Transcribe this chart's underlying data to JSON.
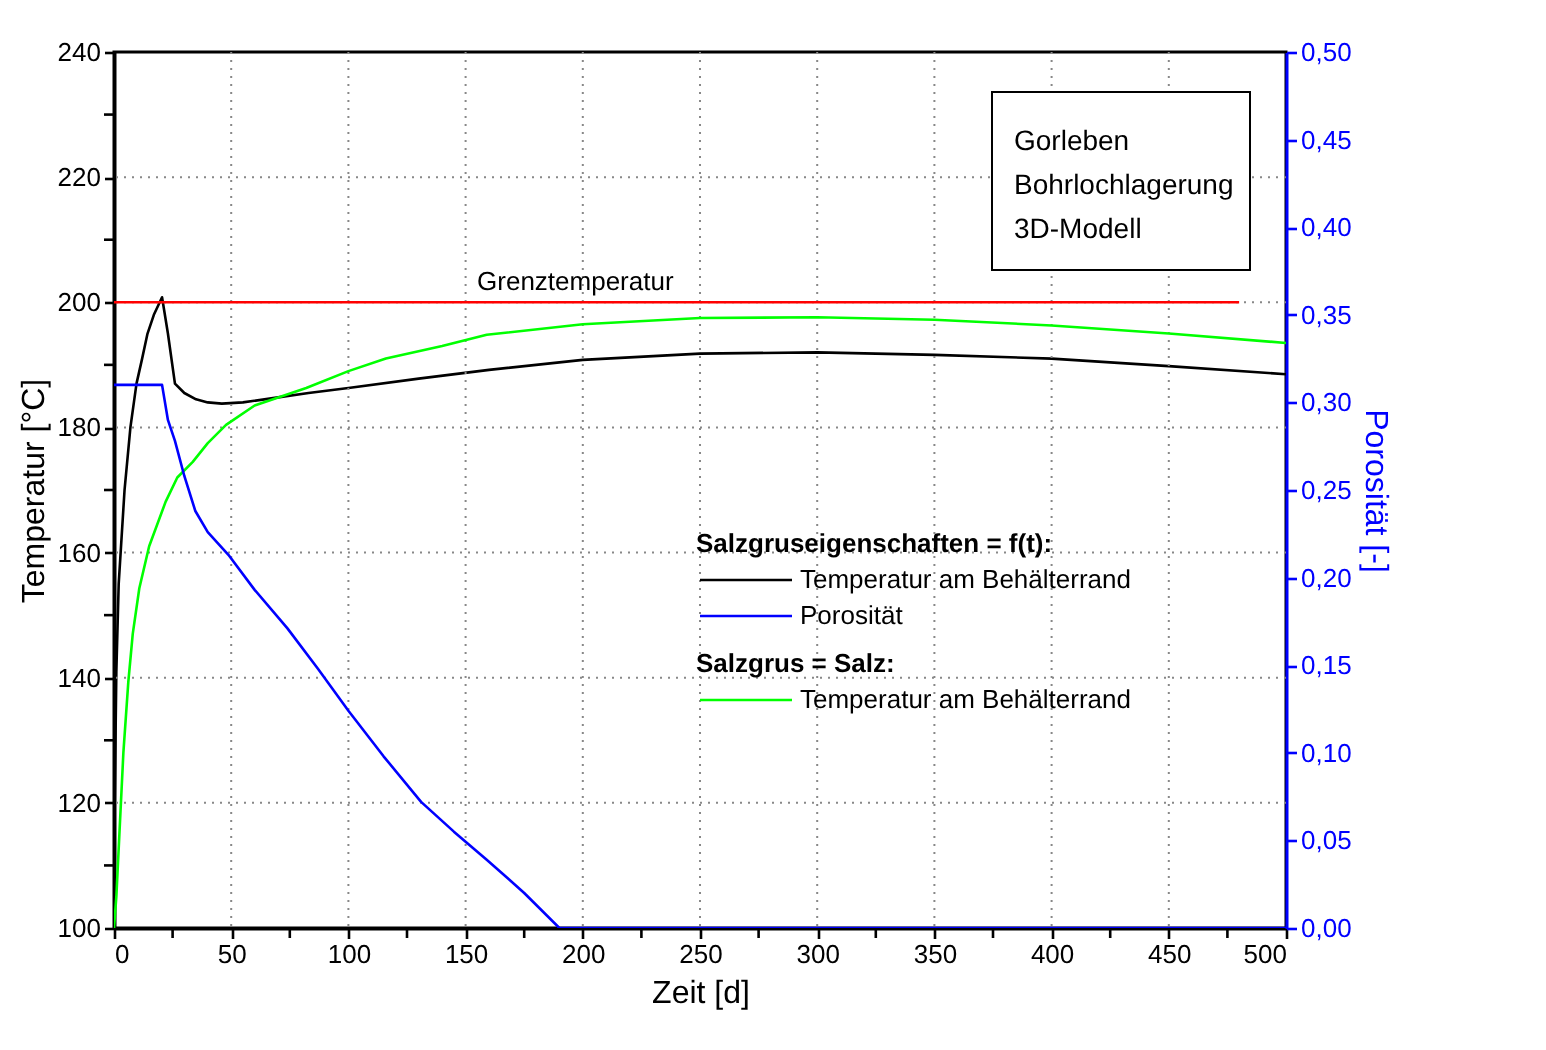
{
  "chart_data": {
    "type": "line",
    "xlabel": "Zeit [d]",
    "ylabel": "Temperatur [°C]",
    "y2label": "Porosität [-]",
    "annotations": [
      "Gorleben\nBohrlochlagerung\n3D-Modell",
      "Salzgruseigenschaften = f(t):",
      "Salzgrus = Salz:"
    ],
    "xlim": [
      0,
      500
    ],
    "xticks": [
      0,
      {
        "value": 25,
        "label": null
      },
      50,
      {
        "value": 75,
        "label": null
      },
      100,
      {
        "value": 125,
        "label": null
      },
      150,
      {
        "value": 175,
        "label": null
      },
      200,
      {
        "value": 225,
        "label": null
      },
      250,
      {
        "value": 275,
        "label": null
      },
      300,
      {
        "value": 325,
        "label": null
      },
      350,
      {
        "value": 375,
        "label": null
      },
      400,
      {
        "value": 425,
        "label": null
      },
      450,
      {
        "value": 475,
        "label": null
      },
      500
    ],
    "ylim": [
      100,
      240
    ],
    "yticks": [
      100,
      {
        "value": 110,
        "label": null
      },
      120,
      {
        "value": 130,
        "label": null
      },
      140,
      {
        "value": 150,
        "label": null
      },
      160,
      {
        "value": 170,
        "label": null
      },
      180,
      {
        "value": 190,
        "label": null
      },
      200,
      {
        "value": 210,
        "label": null
      },
      220,
      {
        "value": 230,
        "label": null
      },
      240
    ],
    "y2lim": [
      0,
      0.5
    ],
    "y2ticks": [
      {
        "value": 0,
        "label": "0,00"
      },
      {
        "value": 0.05,
        "label": "0,05"
      },
      {
        "value": 0.1,
        "label": "0,10"
      },
      {
        "value": 0.15,
        "label": "0,15"
      },
      {
        "value": 0.2,
        "label": "0,20"
      },
      {
        "value": 0.25,
        "label": "0,25"
      },
      {
        "value": 0.3,
        "label": "0,30"
      },
      {
        "value": 0.35,
        "label": "0,35"
      },
      {
        "value": 0.4,
        "label": "0,40"
      },
      {
        "value": 0.45,
        "label": "0,45"
      },
      {
        "value": 0.5,
        "label": "0,50"
      }
    ],
    "grid": true,
    "legend": "right",
    "series": [
      {
        "name": "Temperatur am Behälterrand",
        "color": "#000000",
        "x": [
          0,
          0.3,
          1,
          2,
          4.5,
          7,
          9.6,
          12,
          14.3,
          17,
          20.5,
          23,
          26,
          30,
          35,
          40,
          46,
          55,
          70,
          83,
          100,
          130,
          160,
          200,
          250,
          300,
          350,
          400,
          450,
          500
        ],
        "values": [
          100,
          120,
          141,
          155,
          170,
          180,
          187,
          191,
          195,
          198,
          200.8,
          195,
          187,
          185.5,
          184.5,
          184,
          183.8,
          184,
          184.8,
          185.5,
          186.3,
          187.8,
          189.2,
          190.8,
          191.8,
          192,
          191.6,
          191,
          189.8,
          188.5
        ]
      },
      {
        "name": "Porosität",
        "color": "#0000ff",
        "axis": "y2",
        "x": [
          0,
          20.5,
          23,
          26,
          30,
          34.7,
          40,
          48.8,
          60,
          74,
          87,
          100,
          115,
          131,
          145,
          159,
          175,
          190,
          500
        ],
        "values": [
          0.31,
          0.31,
          0.29,
          0.278,
          0.258,
          0.238,
          0.226,
          0.213,
          0.193,
          0.171,
          0.148,
          0.124,
          0.098,
          0.072,
          0.055,
          0.039,
          0.02,
          0,
          0
        ]
      },
      {
        "name": "Temperatur am Behälterrand",
        "color": "#00ff00",
        "x": [
          0,
          1,
          2.3,
          4,
          6.1,
          8,
          10.8,
          15,
          22,
          27,
          33.6,
          40,
          47.8,
          60,
          82,
          100,
          116,
          140,
          159,
          200,
          250,
          300,
          350,
          400,
          450,
          500
        ],
        "values": [
          100,
          105,
          115,
          128,
          139.3,
          147,
          154.3,
          161,
          168.1,
          172,
          174.5,
          177.5,
          180.4,
          183.5,
          186.3,
          189,
          191,
          193,
          194.8,
          196.5,
          197.5,
          197.6,
          197.2,
          196.3,
          195,
          193.5
        ]
      },
      {
        "name": "Grenztemperatur",
        "color": "#ff0000",
        "x": [
          0,
          480
        ],
        "values": [
          200,
          200
        ]
      }
    ]
  }
}
